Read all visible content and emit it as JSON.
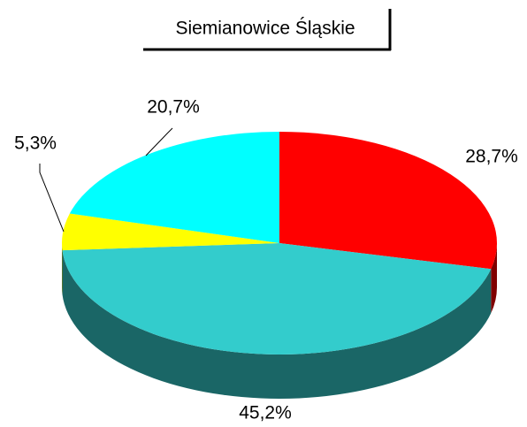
{
  "chart_data": {
    "type": "pie3d",
    "title": "Siemianowice Śląskie",
    "categories": [
      null,
      null,
      null,
      null
    ],
    "values": [
      28.7,
      45.2,
      5.3,
      20.7
    ],
    "value_labels": [
      "28,7%",
      "45,2%",
      "5,3%",
      "20,7%"
    ],
    "colors": [
      "#ff0000",
      "#33cccc",
      "#ffff00",
      "#00ffff"
    ]
  }
}
